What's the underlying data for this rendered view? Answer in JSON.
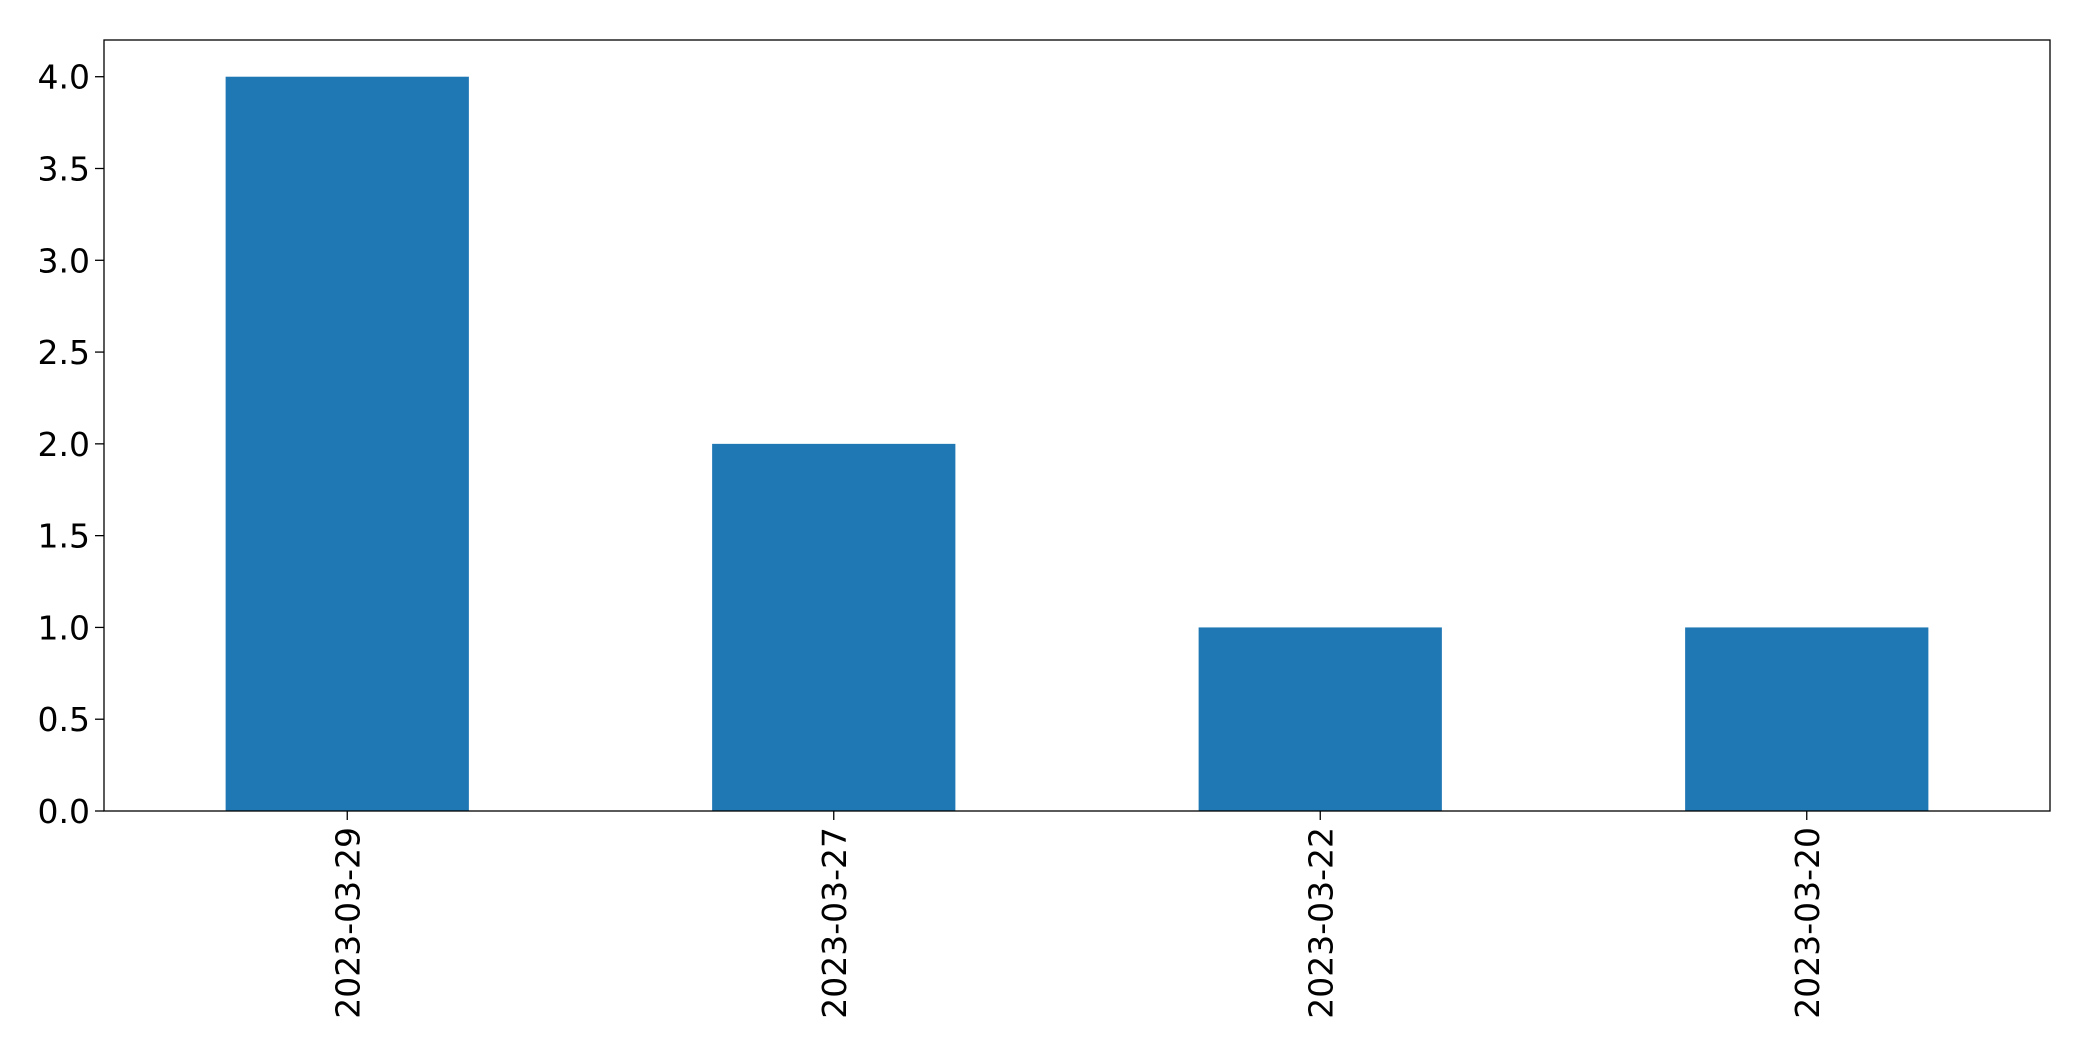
{
  "chart_data": {
    "type": "bar",
    "title": "",
    "xlabel": "",
    "ylabel": "",
    "categories": [
      "2023-03-29",
      "2023-03-27",
      "2023-03-22",
      "2023-03-20"
    ],
    "values": [
      4,
      2,
      1,
      1
    ],
    "ylim": [
      0,
      4.2
    ],
    "yticks": [
      0.0,
      0.5,
      1.0,
      1.5,
      2.0,
      2.5,
      3.0,
      3.5,
      4.0
    ],
    "ytick_labels": [
      "0.0",
      "0.5",
      "1.0",
      "1.5",
      "2.0",
      "2.5",
      "3.0",
      "3.5",
      "4.0"
    ],
    "x_tick_rotation": "vertical",
    "grid": false,
    "legend": "none",
    "bar_color": "#1f77b4"
  }
}
